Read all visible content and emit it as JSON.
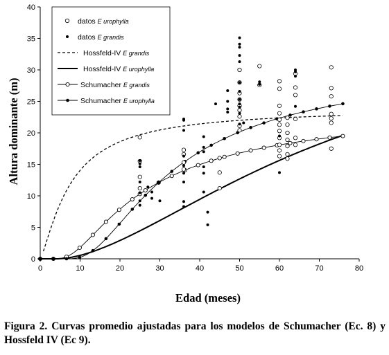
{
  "chart_data": {
    "type": "scatter",
    "xlabel": "Edad (meses)",
    "ylabel": "Altura dominante (m)",
    "xlim": [
      0,
      80
    ],
    "ylim": [
      0,
      40
    ],
    "x_ticks": [
      0,
      10,
      20,
      30,
      40,
      50,
      60,
      70,
      80
    ],
    "y_ticks": [
      0,
      5,
      10,
      15,
      20,
      25,
      30,
      35,
      40
    ],
    "grid": false,
    "legend_position": "top-left",
    "series": [
      {
        "name": "datos",
        "species": "E urophylla",
        "kind": "points",
        "marker": "open-circle",
        "points": [
          [
            25,
            19.3
          ],
          [
            25,
            15.5
          ],
          [
            25,
            13.0
          ],
          [
            25,
            11.2
          ],
          [
            25,
            10.3
          ],
          [
            36,
            17.3
          ],
          [
            36,
            16.6
          ],
          [
            36,
            15.3
          ],
          [
            36,
            14.2
          ],
          [
            45,
            16.0
          ],
          [
            45,
            13.7
          ],
          [
            45,
            11.2
          ],
          [
            50,
            30.0
          ],
          [
            50,
            28.0
          ],
          [
            50,
            26.3
          ],
          [
            50,
            25.3
          ],
          [
            50,
            24.3
          ],
          [
            50,
            23.6
          ],
          [
            50,
            22.6
          ],
          [
            50,
            21.1
          ],
          [
            50,
            20.4
          ],
          [
            55,
            30.6
          ],
          [
            55,
            27.6
          ],
          [
            60,
            28.2
          ],
          [
            60,
            27.0
          ],
          [
            60,
            24.3
          ],
          [
            60,
            23.1
          ],
          [
            60,
            22.1
          ],
          [
            60,
            21.3
          ],
          [
            60,
            20.3
          ],
          [
            60,
            19.2
          ],
          [
            60,
            18.1
          ],
          [
            60,
            17.2
          ],
          [
            60,
            16.3
          ],
          [
            62,
            22.4
          ],
          [
            62,
            21.3
          ],
          [
            62,
            20.0
          ],
          [
            62,
            18.9
          ],
          [
            62,
            17.9
          ],
          [
            62,
            16.6
          ],
          [
            62,
            15.9
          ],
          [
            64,
            29.4
          ],
          [
            64,
            27.2
          ],
          [
            64,
            26.0
          ],
          [
            64,
            22.2
          ],
          [
            64,
            19.2
          ],
          [
            64,
            18.1
          ],
          [
            73,
            30.4
          ],
          [
            73,
            27.1
          ],
          [
            73,
            25.8
          ],
          [
            73,
            23.0
          ],
          [
            73,
            22.3
          ],
          [
            73,
            21.6
          ],
          [
            73,
            17.5
          ]
        ]
      },
      {
        "name": "datos",
        "species": "E grandis",
        "kind": "points",
        "marker": "filled-dot",
        "points": [
          [
            25,
            15.6
          ],
          [
            25,
            15.1
          ],
          [
            25,
            14.6
          ],
          [
            25,
            12.2
          ],
          [
            25,
            10.5
          ],
          [
            25,
            9.2
          ],
          [
            25,
            8.5
          ],
          [
            27,
            11.4
          ],
          [
            28,
            10.6
          ],
          [
            28,
            9.6
          ],
          [
            30,
            9.2
          ],
          [
            36,
            22.2
          ],
          [
            36,
            22.0
          ],
          [
            36,
            20.4
          ],
          [
            36,
            16.3
          ],
          [
            36,
            14.8
          ],
          [
            36,
            13.6
          ],
          [
            36,
            12.2
          ],
          [
            36,
            9.1
          ],
          [
            36,
            8.3
          ],
          [
            41,
            19.4
          ],
          [
            41,
            17.7
          ],
          [
            41,
            17.0
          ],
          [
            41,
            14.6
          ],
          [
            41,
            13.6
          ],
          [
            41,
            10.6
          ],
          [
            42,
            7.4
          ],
          [
            42,
            5.4
          ],
          [
            44,
            24.6
          ],
          [
            47,
            26.7
          ],
          [
            47,
            25.0
          ],
          [
            47,
            23.8
          ],
          [
            47,
            23.3
          ],
          [
            50,
            35.1
          ],
          [
            50,
            34.1
          ],
          [
            50,
            33.6
          ],
          [
            50,
            32.3
          ],
          [
            50,
            31.3
          ],
          [
            50,
            28.0
          ],
          [
            50,
            26.6
          ],
          [
            50,
            25.3
          ],
          [
            50,
            24.6
          ],
          [
            50,
            24.1
          ],
          [
            50,
            23.1
          ],
          [
            50,
            21.4
          ],
          [
            51,
            21.6
          ],
          [
            55,
            28.1
          ],
          [
            55,
            27.7
          ],
          [
            60,
            13.7
          ],
          [
            60,
            19.5
          ],
          [
            64,
            30.0
          ],
          [
            64,
            29.7
          ],
          [
            64,
            29.0
          ],
          [
            64,
            24.2
          ]
        ]
      },
      {
        "name": "Hossfeld-IV",
        "species": "E grandis",
        "kind": "line",
        "style": "dashed",
        "color": "#000000"
      },
      {
        "name": "Hossfeld-IV",
        "species": "E urophylla",
        "kind": "line",
        "style": "solid-thick",
        "color": "#000000"
      },
      {
        "name": "Schumacher",
        "species": "E grandis",
        "kind": "line",
        "style": "solid-thin",
        "marker": "open-circle",
        "color": "#000000"
      },
      {
        "name": "Schumacher",
        "species": "E urophylla",
        "kind": "line",
        "style": "solid-thin",
        "marker": "filled-dot",
        "color": "#000000"
      }
    ]
  },
  "caption": "Figura 2. Curvas promedio ajustadas para los modelos de Schumacher (Ec. 8) y Hossfeld IV (Ec 9)."
}
